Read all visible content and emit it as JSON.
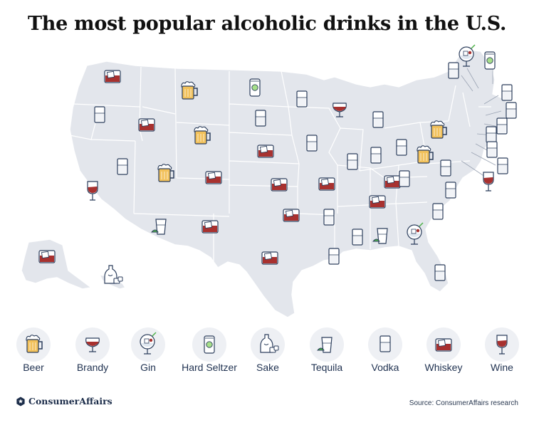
{
  "title": "The most popular alcoholic drinks in the U.S.",
  "legend": [
    {
      "drink": "beer",
      "label": "Beer"
    },
    {
      "drink": "brandy",
      "label": "Brandy"
    },
    {
      "drink": "gin",
      "label": "Gin"
    },
    {
      "drink": "seltzer",
      "label": "Hard Seltzer"
    },
    {
      "drink": "sake",
      "label": "Sake"
    },
    {
      "drink": "tequila",
      "label": "Tequila"
    },
    {
      "drink": "vodka",
      "label": "Vodka"
    },
    {
      "drink": "whiskey",
      "label": "Whiskey"
    },
    {
      "drink": "wine",
      "label": "Wine"
    }
  ],
  "states": [
    {
      "state": "Washington",
      "drink": "whiskey"
    },
    {
      "state": "Oregon",
      "drink": "vodka"
    },
    {
      "state": "California",
      "drink": "wine"
    },
    {
      "state": "Nevada",
      "drink": "vodka"
    },
    {
      "state": "Idaho",
      "drink": "whiskey"
    },
    {
      "state": "Montana",
      "drink": "beer"
    },
    {
      "state": "Wyoming",
      "drink": "beer"
    },
    {
      "state": "Utah",
      "drink": "beer"
    },
    {
      "state": "Arizona",
      "drink": "tequila"
    },
    {
      "state": "Colorado",
      "drink": "whiskey"
    },
    {
      "state": "New Mexico",
      "drink": "whiskey"
    },
    {
      "state": "North Dakota",
      "drink": "seltzer"
    },
    {
      "state": "South Dakota",
      "drink": "vodka"
    },
    {
      "state": "Nebraska",
      "drink": "whiskey"
    },
    {
      "state": "Kansas",
      "drink": "whiskey"
    },
    {
      "state": "Oklahoma",
      "drink": "whiskey"
    },
    {
      "state": "Texas",
      "drink": "whiskey"
    },
    {
      "state": "Minnesota",
      "drink": "vodka"
    },
    {
      "state": "Iowa",
      "drink": "vodka"
    },
    {
      "state": "Missouri",
      "drink": "whiskey"
    },
    {
      "state": "Arkansas",
      "drink": "vodka"
    },
    {
      "state": "Louisiana",
      "drink": "vodka"
    },
    {
      "state": "Wisconsin",
      "drink": "brandy"
    },
    {
      "state": "Illinois",
      "drink": "vodka"
    },
    {
      "state": "Michigan",
      "drink": "vodka"
    },
    {
      "state": "Indiana",
      "drink": "vodka"
    },
    {
      "state": "Ohio",
      "drink": "vodka"
    },
    {
      "state": "Kentucky",
      "drink": "whiskey"
    },
    {
      "state": "Tennessee",
      "drink": "whiskey"
    },
    {
      "state": "Mississippi",
      "drink": "vodka"
    },
    {
      "state": "Alabama",
      "drink": "tequila"
    },
    {
      "state": "Georgia",
      "drink": "gin"
    },
    {
      "state": "Florida",
      "drink": "vodka"
    },
    {
      "state": "South Carolina",
      "drink": "vodka"
    },
    {
      "state": "North Carolina",
      "drink": "vodka"
    },
    {
      "state": "Virginia",
      "drink": "vodka"
    },
    {
      "state": "West Virginia",
      "drink": "vodka"
    },
    {
      "state": "Pennsylvania",
      "drink": "beer"
    },
    {
      "state": "New York",
      "drink": "beer"
    },
    {
      "state": "Maine",
      "drink": "seltzer"
    },
    {
      "state": "New Hampshire",
      "drink": "gin"
    },
    {
      "state": "Vermont",
      "drink": "vodka"
    },
    {
      "state": "Massachusetts",
      "drink": "vodka"
    },
    {
      "state": "Rhode Island",
      "drink": "vodka"
    },
    {
      "state": "Connecticut",
      "drink": "vodka"
    },
    {
      "state": "New Jersey",
      "drink": "vodka"
    },
    {
      "state": "Delaware",
      "drink": "vodka"
    },
    {
      "state": "Maryland",
      "drink": "vodka"
    },
    {
      "state": "District of Columbia",
      "drink": "wine"
    },
    {
      "state": "Alaska",
      "drink": "whiskey"
    },
    {
      "state": "Hawaii",
      "drink": "sake"
    }
  ],
  "brand": {
    "name": "ConsumerAffairs"
  },
  "source": "Source: ConsumerAffairs research",
  "colors": {
    "land": "#e3e6ec",
    "border": "#ffffff",
    "wine": "#a8312f",
    "beer": "#f2c15a",
    "seltzer_label": "#a7e08a",
    "lime": "#4fb24a",
    "outline": "#2c3e5c",
    "legend_circle": "#eef0f4",
    "brand": "#1c2d4a"
  }
}
